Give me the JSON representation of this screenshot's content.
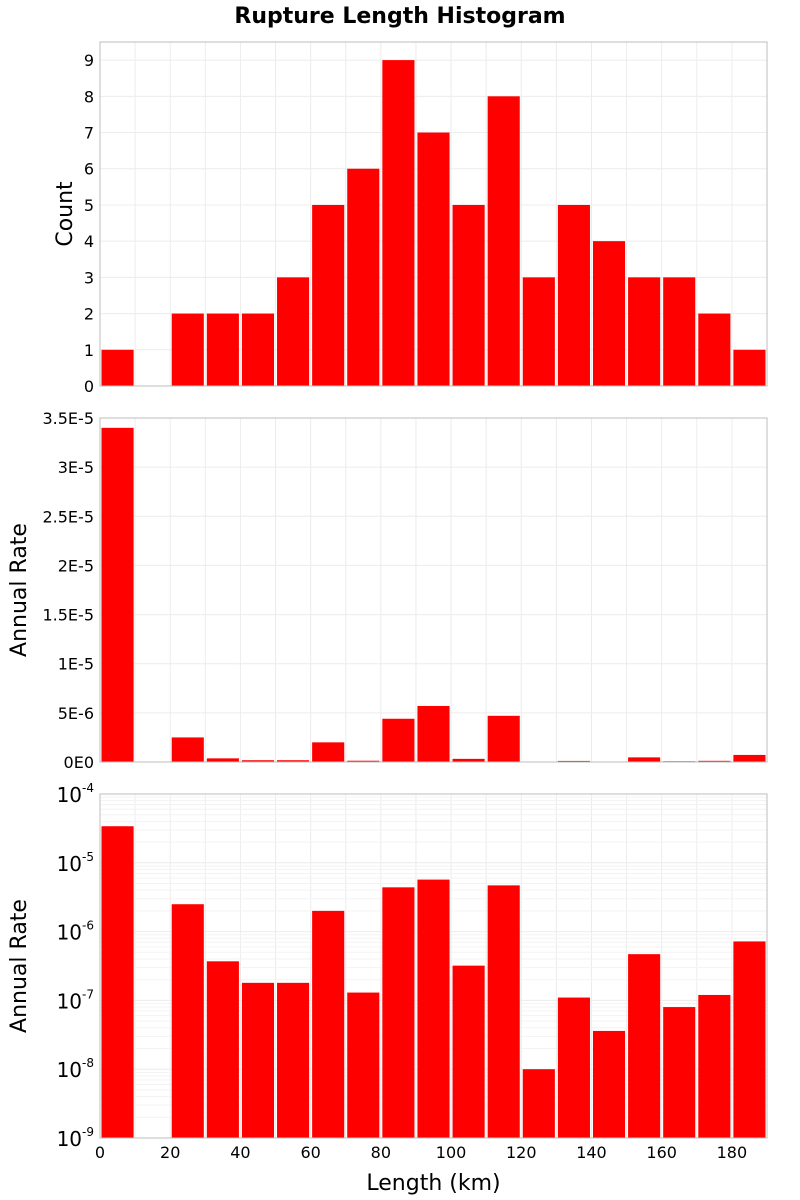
{
  "chart_data": [
    {
      "type": "bar",
      "title": "Rupture Length Histogram",
      "ylabel": "Count",
      "xlabel": "",
      "bin_width": 10,
      "x": [
        5,
        15,
        25,
        35,
        45,
        55,
        65,
        75,
        85,
        95,
        105,
        115,
        125,
        135,
        145,
        155,
        165,
        175,
        185
      ],
      "values": [
        1,
        0,
        2,
        2,
        2,
        3,
        5,
        6,
        9,
        7,
        5,
        8,
        3,
        5,
        4,
        3,
        3,
        2,
        1
      ],
      "xlim": [
        0,
        190
      ],
      "ylim": [
        0,
        9.5
      ],
      "yscale": "linear",
      "yticks": [
        0,
        1,
        2,
        3,
        4,
        5,
        6,
        7,
        8,
        9
      ],
      "ytick_labels": [
        "0",
        "1",
        "2",
        "3",
        "4",
        "5",
        "6",
        "7",
        "8",
        "9"
      ],
      "color": "#ff0000"
    },
    {
      "type": "bar",
      "ylabel": "Annual Rate",
      "xlabel": "",
      "bin_width": 10,
      "x": [
        5,
        15,
        25,
        35,
        45,
        55,
        65,
        75,
        85,
        95,
        105,
        115,
        125,
        135,
        145,
        155,
        165,
        175,
        185
      ],
      "values": [
        3.4e-05,
        0,
        2.5e-06,
        3.7e-07,
        1.8e-07,
        1.8e-07,
        2e-06,
        1.3e-07,
        4.4e-06,
        5.7e-06,
        3.2e-07,
        4.7e-06,
        1e-08,
        1.1e-07,
        3.6e-08,
        4.7e-07,
        8e-08,
        1.2e-07,
        7.2e-07
      ],
      "xlim": [
        0,
        190
      ],
      "ylim": [
        0,
        3.5e-05
      ],
      "yscale": "linear",
      "yticks": [
        0,
        5e-06,
        1e-05,
        1.5e-05,
        2e-05,
        2.5e-05,
        3e-05,
        3.5e-05
      ],
      "ytick_labels": [
        "0E0",
        "5E-6",
        "1E-5",
        "1.5E-5",
        "2E-5",
        "2.5E-5",
        "3E-5",
        "3.5E-5"
      ],
      "color": "#ff0000"
    },
    {
      "type": "bar",
      "ylabel": "Annual Rate",
      "xlabel": "Length (km)",
      "bin_width": 10,
      "x": [
        5,
        15,
        25,
        35,
        45,
        55,
        65,
        75,
        85,
        95,
        105,
        115,
        125,
        135,
        145,
        155,
        165,
        175,
        185
      ],
      "values": [
        3.4e-05,
        0,
        2.5e-06,
        3.7e-07,
        1.8e-07,
        1.8e-07,
        2e-06,
        1.3e-07,
        4.4e-06,
        5.7e-06,
        3.2e-07,
        4.7e-06,
        1e-08,
        1.1e-07,
        3.6e-08,
        4.7e-07,
        8e-08,
        1.2e-07,
        7.2e-07
      ],
      "xlim": [
        0,
        190
      ],
      "ylim": [
        1e-09,
        0.0001
      ],
      "yscale": "log",
      "ytick_exponents": [
        "-9",
        "-8",
        "-7",
        "-6",
        "-5",
        "-4"
      ],
      "ytick_base": "10",
      "xticks": [
        0,
        20,
        40,
        60,
        80,
        100,
        120,
        140,
        160,
        180
      ],
      "xtick_labels": [
        "0",
        "20",
        "40",
        "60",
        "80",
        "100",
        "120",
        "140",
        "160",
        "180"
      ],
      "color": "#ff0000"
    }
  ]
}
